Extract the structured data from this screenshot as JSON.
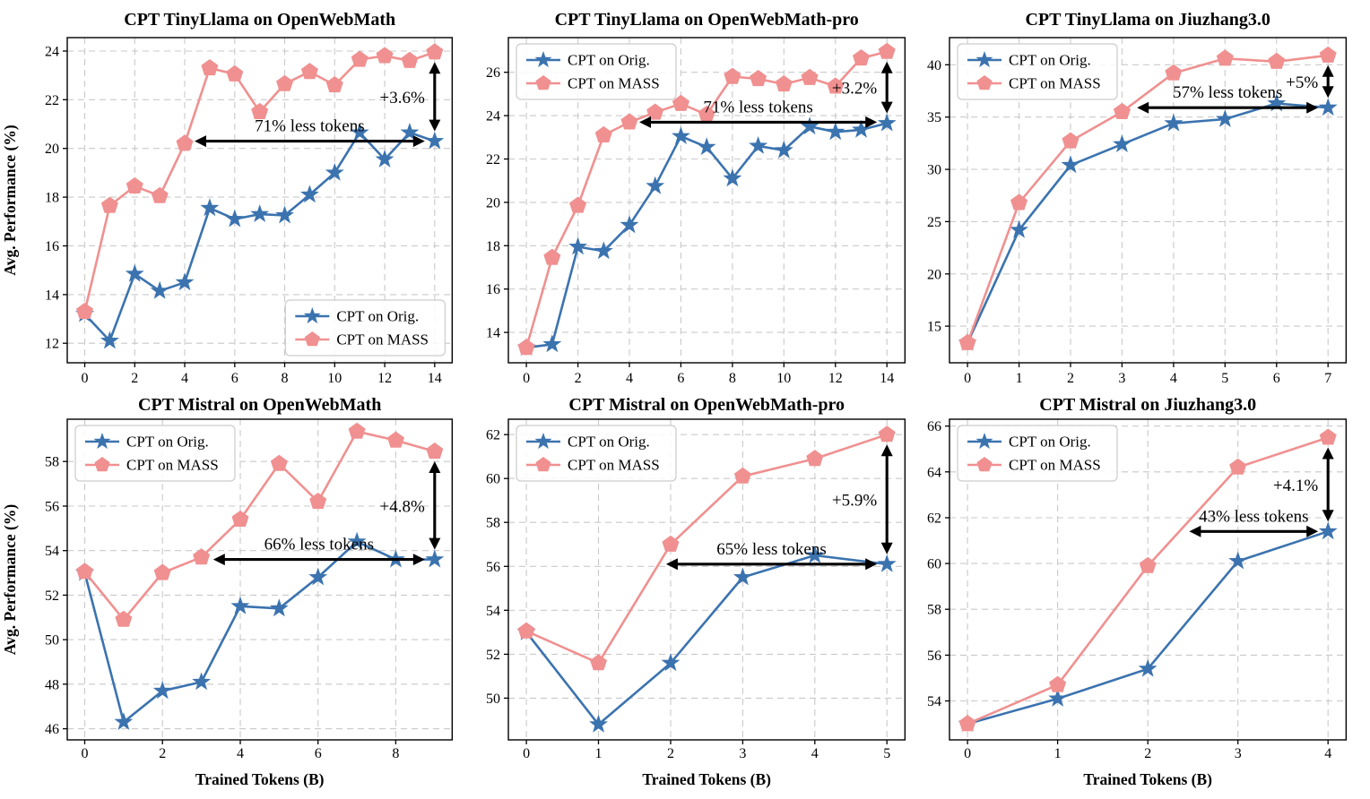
{
  "figure": {
    "background": "#ffffff",
    "grid_color": "#c9c9c9",
    "axis_color": "#000000",
    "annotation_color": "#000000",
    "legend_border": "#cccccc",
    "series_colors": {
      "orig": "#3b73af",
      "mass": "#f09090"
    },
    "xlabel": "Trained Tokens (B)",
    "ylabel": "Avg. Performance (%)"
  },
  "chart_data": [
    {
      "type": "line",
      "title": "CPT TinyLlama on OpenWebMath",
      "xlabel": "",
      "ylabel": "Avg. Performance (%)",
      "x": [
        0,
        1,
        2,
        3,
        4,
        5,
        6,
        7,
        8,
        9,
        10,
        11,
        12,
        13,
        14
      ],
      "xticks": [
        0,
        2,
        4,
        6,
        8,
        10,
        12,
        14
      ],
      "yticks": [
        12,
        14,
        16,
        18,
        20,
        22,
        24
      ],
      "xlim": [
        -0.7,
        14.7
      ],
      "ylim": [
        11.2,
        24.55
      ],
      "legend_position": "bottom-right",
      "grid": true,
      "series": [
        {
          "name": "CPT on Orig.",
          "marker": "star",
          "color": "#3b73af",
          "values": [
            13.2,
            12.1,
            14.85,
            14.15,
            14.5,
            17.55,
            17.1,
            17.3,
            17.25,
            18.1,
            19.0,
            20.65,
            19.55,
            20.65,
            20.3
          ]
        },
        {
          "name": "CPT on MASS",
          "marker": "pentagon",
          "color": "#f09090",
          "values": [
            13.3,
            17.65,
            18.45,
            18.05,
            20.2,
            23.3,
            23.05,
            21.5,
            22.65,
            23.15,
            22.6,
            23.65,
            23.8,
            23.6,
            23.95
          ]
        }
      ],
      "annotations": {
        "gain_label": "+3.6%",
        "gain_arrow": {
          "x": 14,
          "y_from": 20.3,
          "y_to": 23.95
        },
        "tokens_label": "71% less tokens",
        "tokens_arrow": {
          "y": 20.3,
          "x_from": 4.0,
          "x_to": 14
        }
      }
    },
    {
      "type": "line",
      "title": "CPT TinyLlama on OpenWebMath-pro",
      "xlabel": "",
      "ylabel": "",
      "x": [
        0,
        1,
        2,
        3,
        4,
        5,
        6,
        7,
        8,
        9,
        10,
        11,
        12,
        13,
        14
      ],
      "xticks": [
        0,
        2,
        4,
        6,
        8,
        10,
        12,
        14
      ],
      "yticks": [
        14,
        16,
        18,
        20,
        22,
        24,
        26
      ],
      "xlim": [
        -0.7,
        14.7
      ],
      "ylim": [
        12.6,
        27.6
      ],
      "legend_position": "top-left",
      "grid": true,
      "series": [
        {
          "name": "CPT on Orig.",
          "marker": "star",
          "color": "#3b73af",
          "values": [
            13.3,
            13.45,
            17.95,
            17.75,
            18.95,
            20.75,
            23.05,
            22.55,
            21.1,
            22.6,
            22.4,
            23.5,
            23.25,
            23.35,
            23.65
          ]
        },
        {
          "name": "CPT on MASS",
          "marker": "pentagon",
          "color": "#f09090",
          "values": [
            13.3,
            17.45,
            19.85,
            23.1,
            23.7,
            24.15,
            24.55,
            24.05,
            25.8,
            25.7,
            25.45,
            25.75,
            25.35,
            26.65,
            26.95
          ]
        }
      ],
      "annotations": {
        "gain_label": "+3.2%",
        "gain_arrow": {
          "x": 14,
          "y_from": 23.65,
          "y_to": 26.95
        },
        "tokens_label": "71% less tokens",
        "tokens_arrow": {
          "y": 23.7,
          "x_from": 4.0,
          "x_to": 14
        }
      }
    },
    {
      "type": "line",
      "title": "CPT TinyLlama on Jiuzhang3.0",
      "xlabel": "",
      "ylabel": "",
      "x": [
        0,
        1,
        2,
        3,
        4,
        5,
        6,
        7
      ],
      "xticks": [
        0,
        1,
        2,
        3,
        4,
        5,
        6,
        7
      ],
      "yticks": [
        15,
        20,
        25,
        30,
        35,
        40
      ],
      "xlim": [
        -0.35,
        7.35
      ],
      "ylim": [
        11.5,
        42.6
      ],
      "legend_position": "top-left",
      "grid": true,
      "series": [
        {
          "name": "CPT on Orig.",
          "marker": "star",
          "color": "#3b73af",
          "values": [
            13.4,
            24.2,
            30.4,
            32.4,
            34.4,
            34.8,
            36.3,
            35.9
          ]
        },
        {
          "name": "CPT on MASS",
          "marker": "pentagon",
          "color": "#f09090",
          "values": [
            13.4,
            26.8,
            32.7,
            35.5,
            39.2,
            40.6,
            40.3,
            40.9
          ]
        }
      ],
      "annotations": {
        "gain_label": "+5%",
        "gain_arrow": {
          "x": 7,
          "y_from": 35.9,
          "y_to": 40.9
        },
        "tokens_label": "57% less tokens",
        "tokens_arrow": {
          "y": 35.9,
          "x_from": 3.1,
          "x_to": 7
        }
      }
    },
    {
      "type": "line",
      "title": "CPT Mistral on OpenWebMath",
      "xlabel": "Trained Tokens (B)",
      "ylabel": "Avg. Performance (%)",
      "x": [
        0,
        1,
        2,
        3,
        4,
        5,
        6,
        7,
        8,
        9
      ],
      "xticks": [
        0,
        2,
        4,
        6,
        8
      ],
      "yticks": [
        46,
        48,
        50,
        52,
        54,
        56,
        58
      ],
      "xlim": [
        -0.45,
        9.45
      ],
      "ylim": [
        45.5,
        59.9
      ],
      "legend_position": "top-left",
      "grid": true,
      "series": [
        {
          "name": "CPT on Orig.",
          "marker": "star",
          "color": "#3b73af",
          "values": [
            53.0,
            46.3,
            47.7,
            48.1,
            51.5,
            51.4,
            52.8,
            54.4,
            53.6,
            53.6
          ]
        },
        {
          "name": "CPT on MASS",
          "marker": "pentagon",
          "color": "#f09090",
          "values": [
            53.05,
            50.9,
            53.0,
            53.7,
            55.4,
            57.9,
            56.2,
            59.35,
            58.95,
            58.45
          ]
        }
      ],
      "annotations": {
        "gain_label": "+4.8%",
        "gain_arrow": {
          "x": 9,
          "y_from": 53.6,
          "y_to": 58.45
        },
        "tokens_label": "66% less tokens",
        "tokens_arrow": {
          "y": 53.6,
          "x_from": 3.05,
          "x_to": 9
        }
      }
    },
    {
      "type": "line",
      "title": "CPT Mistral on OpenWebMath-pro",
      "xlabel": "Trained Tokens (B)",
      "ylabel": "",
      "x": [
        0,
        1,
        2,
        3,
        4,
        5
      ],
      "xticks": [
        0,
        1,
        2,
        3,
        4,
        5
      ],
      "yticks": [
        50,
        52,
        54,
        56,
        58,
        60,
        62
      ],
      "xlim": [
        -0.25,
        5.25
      ],
      "ylim": [
        48.1,
        62.7
      ],
      "legend_position": "top-left",
      "grid": true,
      "series": [
        {
          "name": "CPT on Orig.",
          "marker": "star",
          "color": "#3b73af",
          "values": [
            53.0,
            48.8,
            51.6,
            55.5,
            56.5,
            56.1
          ]
        },
        {
          "name": "CPT on MASS",
          "marker": "pentagon",
          "color": "#f09090",
          "values": [
            53.05,
            51.6,
            57.0,
            60.1,
            60.9,
            62.0
          ]
        }
      ],
      "annotations": {
        "gain_label": "+5.9%",
        "gain_arrow": {
          "x": 5,
          "y_from": 56.1,
          "y_to": 62.0
        },
        "tokens_label": "65% less tokens",
        "tokens_arrow": {
          "y": 56.1,
          "x_from": 1.8,
          "x_to": 5
        }
      }
    },
    {
      "type": "line",
      "title": "CPT Mistral on Jiuzhang3.0",
      "xlabel": "Trained Tokens (B)",
      "ylabel": "",
      "x": [
        0,
        1,
        2,
        3,
        4
      ],
      "xticks": [
        0,
        1,
        2,
        3,
        4
      ],
      "yticks": [
        54,
        56,
        58,
        60,
        62,
        64,
        66
      ],
      "xlim": [
        -0.2,
        4.2
      ],
      "ylim": [
        52.3,
        66.3
      ],
      "legend_position": "top-left",
      "grid": true,
      "series": [
        {
          "name": "CPT on Orig.",
          "marker": "star",
          "color": "#3b73af",
          "values": [
            53.0,
            54.1,
            55.4,
            60.1,
            61.4
          ]
        },
        {
          "name": "CPT on MASS",
          "marker": "pentagon",
          "color": "#f09090",
          "values": [
            53.0,
            54.7,
            59.9,
            64.2,
            65.5
          ]
        }
      ],
      "annotations": {
        "gain_label": "+4.1%",
        "gain_arrow": {
          "x": 4,
          "y_from": 61.4,
          "y_to": 65.5
        },
        "tokens_label": "43% less tokens",
        "tokens_arrow": {
          "y": 61.4,
          "x_from": 2.35,
          "x_to": 4
        }
      }
    }
  ]
}
